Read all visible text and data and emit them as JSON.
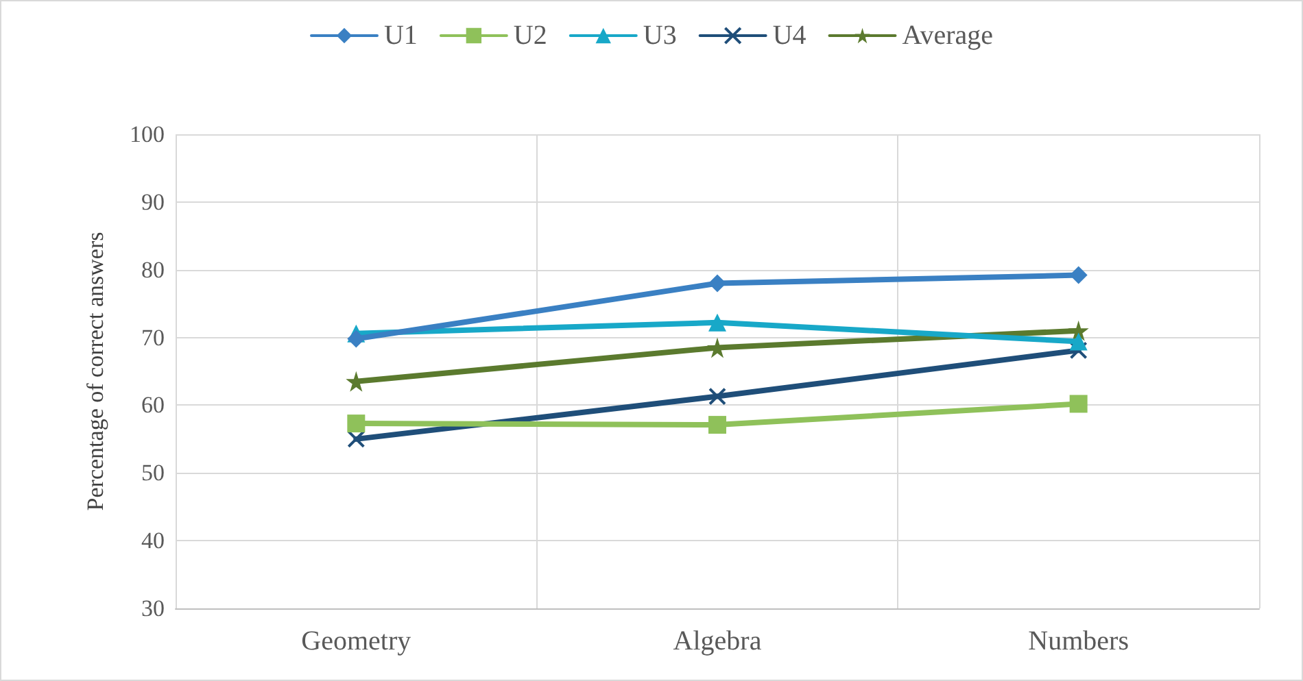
{
  "chart_data": {
    "type": "line",
    "ylabel": "Percentage of correct answers",
    "categories": [
      "Geometry",
      "Algebra",
      "Numbers"
    ],
    "series": [
      {
        "name": "U1",
        "color": "#3a80c3",
        "marker": "diamond",
        "values": [
          69.8,
          78,
          79.2
        ]
      },
      {
        "name": "U2",
        "color": "#8fc15a",
        "marker": "square",
        "values": [
          57.3,
          57.1,
          60.2
        ]
      },
      {
        "name": "U3",
        "color": "#18a8c8",
        "marker": "triangle",
        "values": [
          70.6,
          72.2,
          69.4
        ]
      },
      {
        "name": "U4",
        "color": "#1f4e79",
        "marker": "cross",
        "values": [
          55,
          61.3,
          68.1
        ]
      },
      {
        "name": "Average",
        "color": "#5b7a2e",
        "marker": "star",
        "values": [
          63.5,
          68.5,
          71
        ]
      }
    ],
    "ylim": [
      30,
      100
    ],
    "yticks": [
      30,
      40,
      50,
      60,
      70,
      80,
      90,
      100
    ],
    "grid": true,
    "legend": "top",
    "line_style": "solid"
  }
}
